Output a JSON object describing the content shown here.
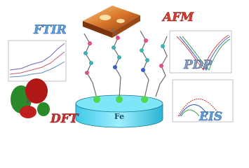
{
  "labels": {
    "ftir": "FTIR",
    "afm": "AFM",
    "pdp": "PDP",
    "dft": "DFT",
    "eis": "EIS",
    "substrate": "Fe"
  }
}
